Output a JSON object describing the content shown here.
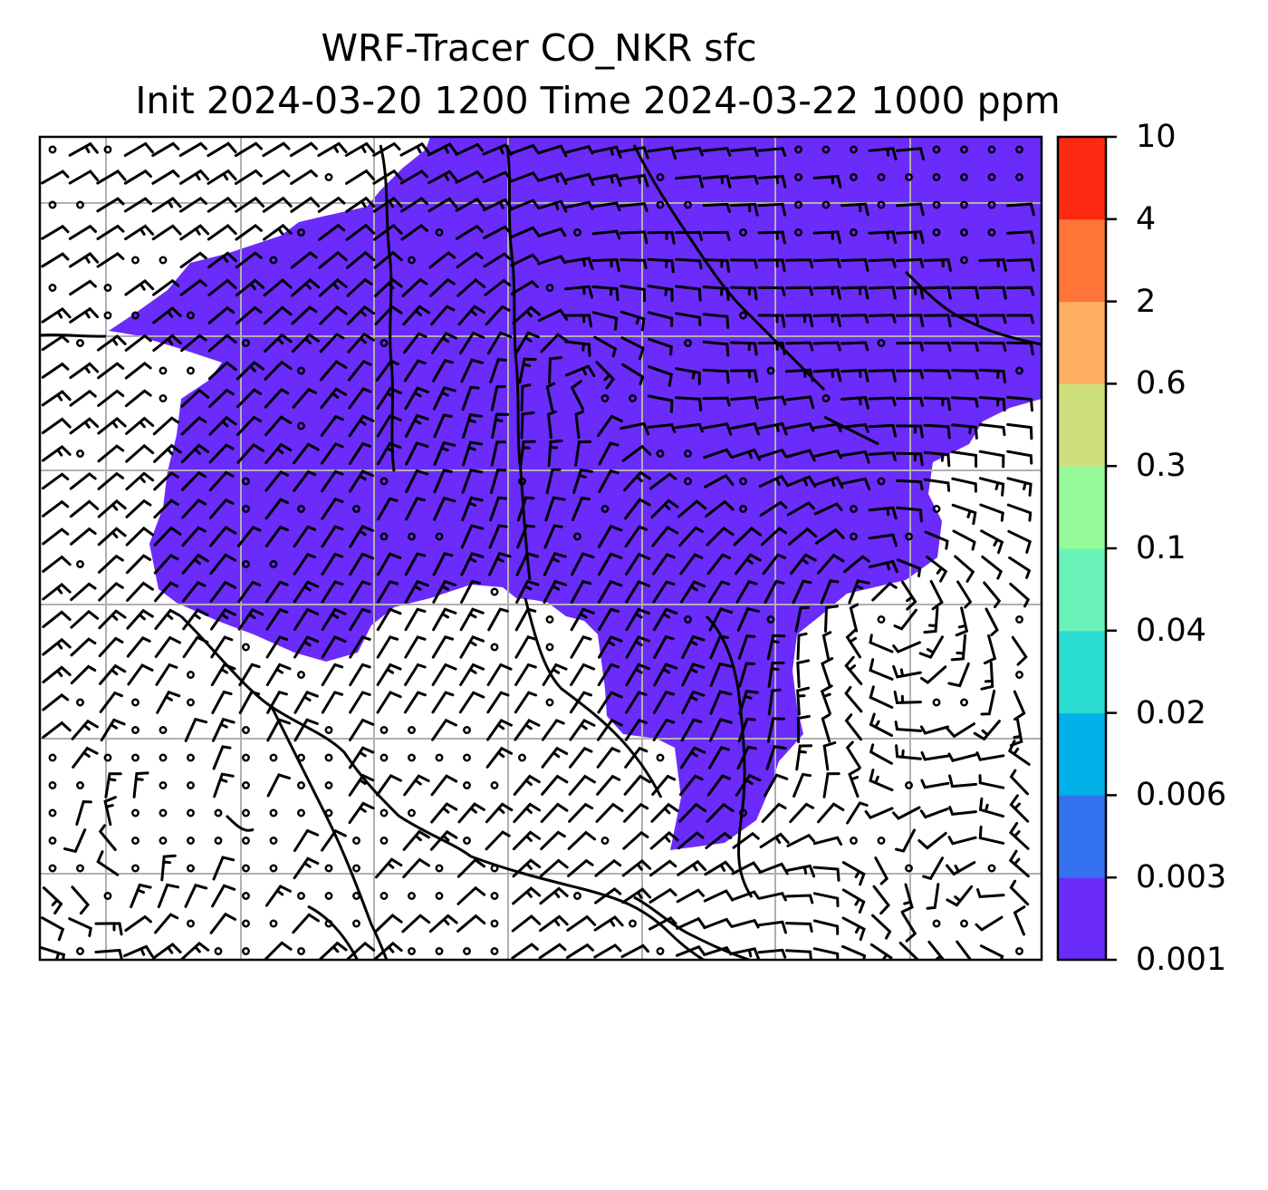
{
  "title": {
    "line1": "WRF-Tracer CO_NKR sfc",
    "line2": "Init 2024-03-20 1200 Time 2024-03-22 1000 ppm"
  },
  "colorbar": {
    "levels": [
      "0.001",
      "0.003",
      "0.006",
      "0.02",
      "0.04",
      "0.1",
      "0.3",
      "0.6",
      "2",
      "4",
      "10"
    ],
    "colors": [
      "#6a2bfb",
      "#3572ef",
      "#02b1e9",
      "#2bddd0",
      "#69f3b8",
      "#95fa97",
      "#cee07e",
      "#fdae61",
      "#ff7538",
      "#fd2a12"
    ]
  },
  "map": {
    "field": "CO_NKR tracer concentration",
    "plume_color": "#6a2bfb",
    "gridlines": true,
    "wind_barbs": true,
    "coastlines": true
  }
}
